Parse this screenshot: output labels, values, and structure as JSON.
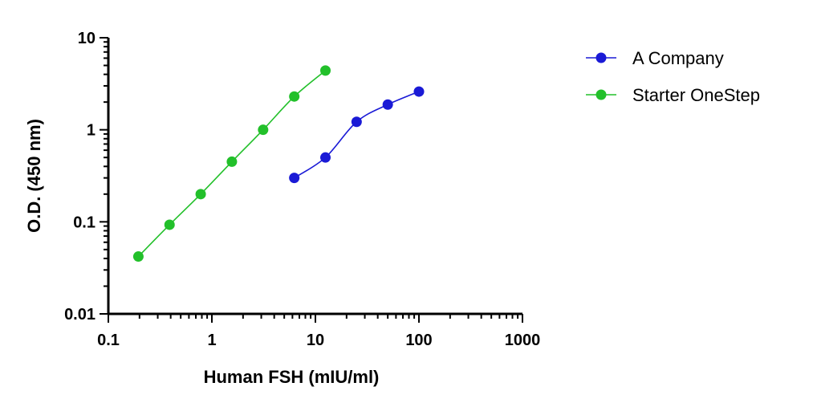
{
  "chart_data": {
    "type": "line",
    "xlabel": "Human FSH (mIU/ml)",
    "ylabel": "O.D. (450 nm)",
    "xscale": "log",
    "yscale": "log",
    "xlim": [
      0.1,
      1000
    ],
    "ylim": [
      0.01,
      10
    ],
    "x_ticks": [
      0.1,
      1,
      10,
      100,
      1000
    ],
    "x_tick_labels": [
      "0.1",
      "1",
      "10",
      "100",
      "1000"
    ],
    "y_ticks": [
      0.01,
      0.1,
      1,
      10
    ],
    "y_tick_labels": [
      "0.01",
      "0.1",
      "1",
      "10"
    ],
    "grid": false,
    "legend_position": "top-right",
    "series": [
      {
        "name": "A Company",
        "color": "#1a1ad6",
        "marker": "circle",
        "x": [
          6.25,
          12.5,
          25,
          50,
          100
        ],
        "y": [
          0.3,
          0.5,
          1.22,
          1.88,
          2.6
        ]
      },
      {
        "name": "Starter OneStep",
        "color": "#22c02a",
        "marker": "circle",
        "x": [
          0.195,
          0.39,
          0.78,
          1.56,
          3.125,
          6.25,
          12.5
        ],
        "y": [
          0.042,
          0.093,
          0.2,
          0.45,
          1.0,
          2.3,
          4.4
        ]
      }
    ]
  }
}
